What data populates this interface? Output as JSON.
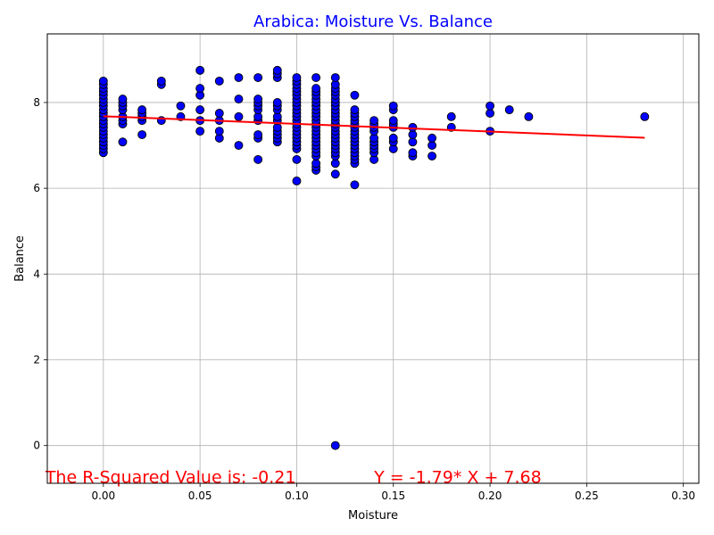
{
  "chart_data": {
    "type": "scatter",
    "title": "Arabica: Moisture Vs. Balance",
    "xlabel": "Moisture",
    "ylabel": "Balance",
    "xlim": [
      -0.029,
      0.308
    ],
    "ylim": [
      -0.88,
      9.6
    ],
    "xticks": [
      0.0,
      0.05,
      0.1,
      0.15,
      0.2,
      0.25,
      0.3
    ],
    "xtick_labels": [
      "0.00",
      "0.05",
      "0.10",
      "0.15",
      "0.20",
      "0.25",
      "0.30"
    ],
    "yticks": [
      0,
      2,
      4,
      6,
      8
    ],
    "ytick_labels": [
      "0",
      "2",
      "4",
      "6",
      "8"
    ],
    "grid": true,
    "colors": {
      "title": "#0000ff",
      "marker_fill": "#0000ff",
      "marker_edge": "#000000",
      "regression_line": "#ff0000",
      "annotation": "#ff0000",
      "grid": "#b0b0b0"
    },
    "series": [
      {
        "points": [
          [
            0.0,
            6.83
          ],
          [
            0.0,
            6.92
          ],
          [
            0.0,
            7.0
          ],
          [
            0.0,
            7.08
          ],
          [
            0.0,
            7.17
          ],
          [
            0.0,
            7.25
          ],
          [
            0.0,
            7.33
          ],
          [
            0.0,
            7.42
          ],
          [
            0.0,
            7.5
          ],
          [
            0.0,
            7.58
          ],
          [
            0.0,
            7.67
          ],
          [
            0.0,
            7.75
          ],
          [
            0.0,
            7.83
          ],
          [
            0.0,
            7.92
          ],
          [
            0.0,
            8.0
          ],
          [
            0.0,
            8.08
          ],
          [
            0.0,
            8.17
          ],
          [
            0.0,
            8.25
          ],
          [
            0.0,
            8.33
          ],
          [
            0.0,
            8.42
          ],
          [
            0.0,
            8.5
          ],
          [
            0.01,
            7.08
          ],
          [
            0.01,
            7.5
          ],
          [
            0.01,
            7.58
          ],
          [
            0.01,
            7.67
          ],
          [
            0.01,
            7.83
          ],
          [
            0.01,
            7.92
          ],
          [
            0.01,
            8.0
          ],
          [
            0.01,
            8.08
          ],
          [
            0.02,
            7.25
          ],
          [
            0.02,
            7.58
          ],
          [
            0.02,
            7.67
          ],
          [
            0.02,
            7.75
          ],
          [
            0.02,
            7.83
          ],
          [
            0.03,
            7.58
          ],
          [
            0.03,
            8.42
          ],
          [
            0.03,
            8.5
          ],
          [
            0.04,
            7.67
          ],
          [
            0.04,
            7.92
          ],
          [
            0.05,
            7.33
          ],
          [
            0.05,
            7.58
          ],
          [
            0.05,
            7.83
          ],
          [
            0.05,
            8.17
          ],
          [
            0.05,
            8.33
          ],
          [
            0.05,
            8.75
          ],
          [
            0.06,
            7.17
          ],
          [
            0.06,
            7.33
          ],
          [
            0.06,
            7.58
          ],
          [
            0.06,
            7.75
          ],
          [
            0.06,
            8.5
          ],
          [
            0.07,
            7.0
          ],
          [
            0.07,
            7.67
          ],
          [
            0.07,
            8.08
          ],
          [
            0.07,
            8.58
          ],
          [
            0.08,
            6.67
          ],
          [
            0.08,
            7.17
          ],
          [
            0.08,
            7.25
          ],
          [
            0.08,
            7.58
          ],
          [
            0.08,
            7.67
          ],
          [
            0.08,
            7.83
          ],
          [
            0.08,
            7.92
          ],
          [
            0.08,
            8.0
          ],
          [
            0.08,
            8.08
          ],
          [
            0.08,
            8.58
          ],
          [
            0.09,
            7.08
          ],
          [
            0.09,
            7.17
          ],
          [
            0.09,
            7.25
          ],
          [
            0.09,
            7.33
          ],
          [
            0.09,
            7.42
          ],
          [
            0.09,
            7.58
          ],
          [
            0.09,
            7.67
          ],
          [
            0.09,
            7.83
          ],
          [
            0.09,
            7.92
          ],
          [
            0.09,
            8.0
          ],
          [
            0.09,
            8.58
          ],
          [
            0.09,
            8.67
          ],
          [
            0.09,
            8.75
          ],
          [
            0.1,
            6.17
          ],
          [
            0.1,
            6.67
          ],
          [
            0.1,
            6.92
          ],
          [
            0.1,
            7.0
          ],
          [
            0.1,
            7.08
          ],
          [
            0.1,
            7.17
          ],
          [
            0.1,
            7.25
          ],
          [
            0.1,
            7.33
          ],
          [
            0.1,
            7.42
          ],
          [
            0.1,
            7.5
          ],
          [
            0.1,
            7.58
          ],
          [
            0.1,
            7.67
          ],
          [
            0.1,
            7.75
          ],
          [
            0.1,
            7.83
          ],
          [
            0.1,
            7.92
          ],
          [
            0.1,
            8.0
          ],
          [
            0.1,
            8.08
          ],
          [
            0.1,
            8.17
          ],
          [
            0.1,
            8.25
          ],
          [
            0.1,
            8.33
          ],
          [
            0.1,
            8.42
          ],
          [
            0.1,
            8.5
          ],
          [
            0.1,
            8.58
          ],
          [
            0.11,
            6.42
          ],
          [
            0.11,
            6.5
          ],
          [
            0.11,
            6.58
          ],
          [
            0.11,
            6.75
          ],
          [
            0.11,
            6.83
          ],
          [
            0.11,
            6.92
          ],
          [
            0.11,
            7.0
          ],
          [
            0.11,
            7.08
          ],
          [
            0.11,
            7.17
          ],
          [
            0.11,
            7.25
          ],
          [
            0.11,
            7.33
          ],
          [
            0.11,
            7.42
          ],
          [
            0.11,
            7.5
          ],
          [
            0.11,
            7.58
          ],
          [
            0.11,
            7.67
          ],
          [
            0.11,
            7.75
          ],
          [
            0.11,
            7.83
          ],
          [
            0.11,
            7.92
          ],
          [
            0.11,
            8.0
          ],
          [
            0.11,
            8.08
          ],
          [
            0.11,
            8.17
          ],
          [
            0.11,
            8.25
          ],
          [
            0.11,
            8.33
          ],
          [
            0.11,
            8.58
          ],
          [
            0.12,
            0.0
          ],
          [
            0.12,
            6.33
          ],
          [
            0.12,
            6.58
          ],
          [
            0.12,
            6.75
          ],
          [
            0.12,
            6.83
          ],
          [
            0.12,
            6.92
          ],
          [
            0.12,
            7.0
          ],
          [
            0.12,
            7.08
          ],
          [
            0.12,
            7.17
          ],
          [
            0.12,
            7.25
          ],
          [
            0.12,
            7.33
          ],
          [
            0.12,
            7.42
          ],
          [
            0.12,
            7.5
          ],
          [
            0.12,
            7.58
          ],
          [
            0.12,
            7.67
          ],
          [
            0.12,
            7.75
          ],
          [
            0.12,
            7.83
          ],
          [
            0.12,
            7.92
          ],
          [
            0.12,
            8.0
          ],
          [
            0.12,
            8.08
          ],
          [
            0.12,
            8.17
          ],
          [
            0.12,
            8.25
          ],
          [
            0.12,
            8.33
          ],
          [
            0.12,
            8.42
          ],
          [
            0.12,
            8.58
          ],
          [
            0.13,
            6.08
          ],
          [
            0.13,
            6.58
          ],
          [
            0.13,
            6.67
          ],
          [
            0.13,
            6.75
          ],
          [
            0.13,
            6.83
          ],
          [
            0.13,
            6.92
          ],
          [
            0.13,
            7.0
          ],
          [
            0.13,
            7.08
          ],
          [
            0.13,
            7.17
          ],
          [
            0.13,
            7.25
          ],
          [
            0.13,
            7.33
          ],
          [
            0.13,
            7.42
          ],
          [
            0.13,
            7.5
          ],
          [
            0.13,
            7.58
          ],
          [
            0.13,
            7.67
          ],
          [
            0.13,
            7.75
          ],
          [
            0.13,
            7.83
          ],
          [
            0.13,
            8.17
          ],
          [
            0.14,
            6.67
          ],
          [
            0.14,
            6.83
          ],
          [
            0.14,
            6.92
          ],
          [
            0.14,
            7.0
          ],
          [
            0.14,
            7.08
          ],
          [
            0.14,
            7.17
          ],
          [
            0.14,
            7.33
          ],
          [
            0.14,
            7.42
          ],
          [
            0.14,
            7.5
          ],
          [
            0.14,
            7.58
          ],
          [
            0.15,
            6.92
          ],
          [
            0.15,
            7.08
          ],
          [
            0.15,
            7.17
          ],
          [
            0.15,
            7.42
          ],
          [
            0.15,
            7.5
          ],
          [
            0.15,
            7.58
          ],
          [
            0.15,
            7.83
          ],
          [
            0.15,
            7.92
          ],
          [
            0.16,
            6.75
          ],
          [
            0.16,
            6.83
          ],
          [
            0.16,
            7.08
          ],
          [
            0.16,
            7.25
          ],
          [
            0.16,
            7.42
          ],
          [
            0.17,
            6.75
          ],
          [
            0.17,
            7.0
          ],
          [
            0.17,
            7.17
          ],
          [
            0.18,
            7.42
          ],
          [
            0.18,
            7.67
          ],
          [
            0.2,
            7.33
          ],
          [
            0.2,
            7.75
          ],
          [
            0.2,
            7.92
          ],
          [
            0.21,
            7.83
          ],
          [
            0.22,
            7.67
          ],
          [
            0.28,
            7.67
          ]
        ]
      }
    ],
    "regression": {
      "slope": -1.79,
      "intercept": 7.68,
      "x_range": [
        0.0,
        0.28
      ]
    },
    "annotations": [
      {
        "text": "The R-Squared Value is: -0.21",
        "x": -0.03,
        "y": -0.75
      },
      {
        "text": "Y = -1.79* X + 7.68",
        "x": 0.14,
        "y": -0.75
      }
    ]
  }
}
